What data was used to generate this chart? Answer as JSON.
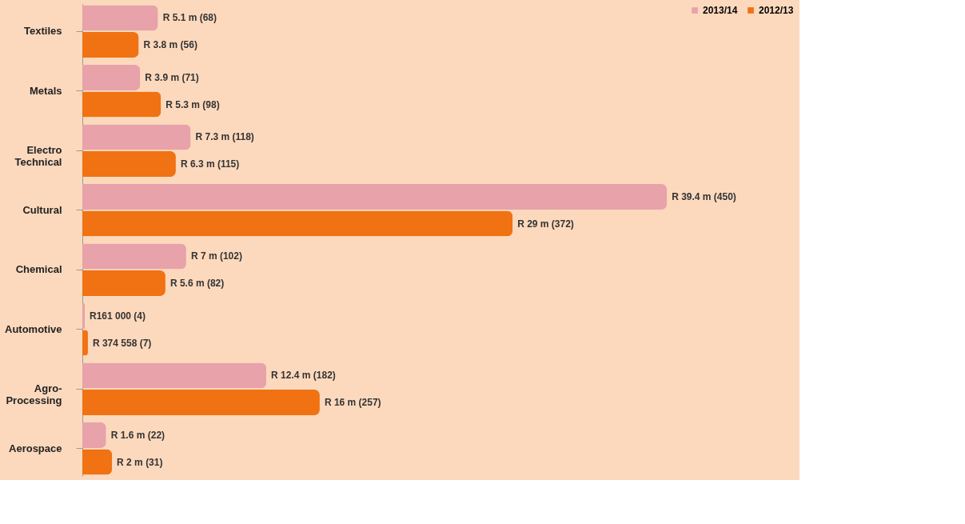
{
  "chart_data": {
    "type": "bar",
    "orientation": "horizontal",
    "legend": "top right",
    "categories": [
      "Textiles",
      "Metals",
      "Electro Technical",
      "Cultural",
      "Chemical",
      "Automotive",
      "Agro-Processing",
      "Aerospace"
    ],
    "series": [
      {
        "name": "2013/14",
        "color": "#e8a2aa",
        "values": [
          5.1,
          3.9,
          7.3,
          39.4,
          7,
          0.161,
          12.4,
          1.6
        ],
        "value_labels": [
          "R 5.1 m  (68)",
          "R 3.9 m  (71)",
          "R 7.3 m  (118)",
          "R 39.4 m  (450)",
          "R 7 m  (102)",
          "R161 000  (4)",
          "R 12.4 m  (182)",
          "R 1.6 m  (22)"
        ]
      },
      {
        "name": "2012/13",
        "color": "#f07212",
        "values": [
          3.8,
          5.3,
          6.3,
          29,
          5.6,
          0.374558,
          16,
          2
        ],
        "value_labels": [
          "R 3.8 m  (56)",
          "R 5.3 m  (98)",
          "R 6.3 m  (115)",
          "R 29 m  (372)",
          "R 5.6 m  (82)",
          "R 374 558  (7)",
          "R 16 m  (257)",
          "R 2 m  (31)"
        ]
      }
    ]
  }
}
